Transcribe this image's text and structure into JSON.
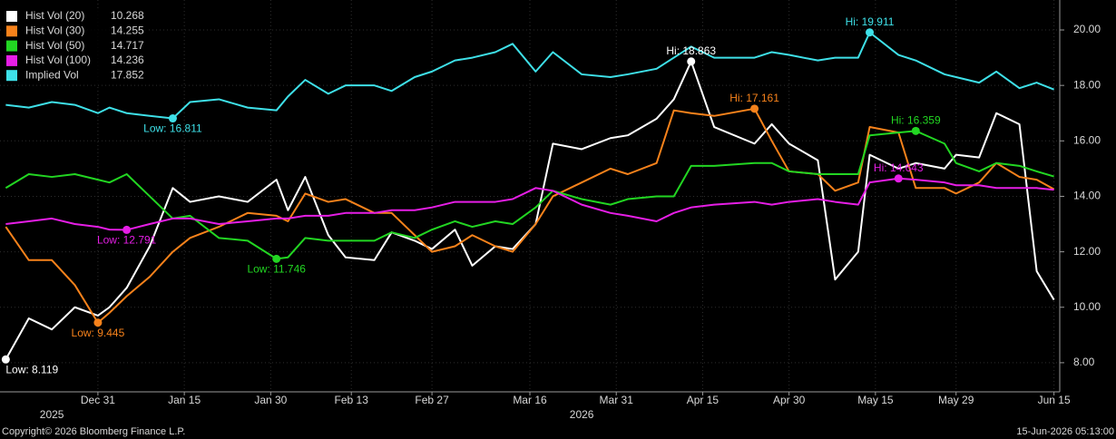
{
  "chart_data": {
    "type": "line",
    "legend_values": "last",
    "x": [
      "2025-12-15",
      "2025-12-19",
      "2025-12-23",
      "2025-12-27",
      "2025-12-31",
      "2026-01-02",
      "2026-01-05",
      "2026-01-09",
      "2026-01-13",
      "2026-01-16",
      "2026-01-21",
      "2026-01-26",
      "2026-01-31",
      "2026-02-02",
      "2026-02-05",
      "2026-02-09",
      "2026-02-12",
      "2026-02-17",
      "2026-02-20",
      "2026-02-24",
      "2026-02-27",
      "2026-03-03",
      "2026-03-06",
      "2026-03-10",
      "2026-03-13",
      "2026-03-17",
      "2026-03-20",
      "2026-03-25",
      "2026-03-30",
      "2026-04-02",
      "2026-04-07",
      "2026-04-10",
      "2026-04-13",
      "2026-04-17",
      "2026-04-24",
      "2026-04-27",
      "2026-04-30",
      "2026-05-05",
      "2026-05-08",
      "2026-05-12",
      "2026-05-14",
      "2026-05-19",
      "2026-05-22",
      "2026-05-27",
      "2026-05-29",
      "2026-06-02",
      "2026-06-05",
      "2026-06-09",
      "2026-06-12",
      "2026-06-15"
    ],
    "series": [
      {
        "name": "Hist Vol (20)",
        "color": "#ffffff",
        "values": [
          8.119,
          9.6,
          9.2,
          10.0,
          9.7,
          10.0,
          10.7,
          12.2,
          14.3,
          13.8,
          14.0,
          13.8,
          14.6,
          13.5,
          14.7,
          12.6,
          11.8,
          11.7,
          12.7,
          12.4,
          12.1,
          12.8,
          11.5,
          12.2,
          12.1,
          13.0,
          15.9,
          15.7,
          16.1,
          16.2,
          16.8,
          17.5,
          18.863,
          16.5,
          15.9,
          16.6,
          15.9,
          15.3,
          11.0,
          12.0,
          15.5,
          15.0,
          15.2,
          15.0,
          15.5,
          15.4,
          17.0,
          16.6,
          11.3,
          10.268
        ],
        "annotations": [
          {
            "label": "Low: 8.119",
            "x": "2025-12-15",
            "value": 8.119,
            "kind": "low"
          },
          {
            "label": "Hi: 18.863",
            "x": "2026-04-13",
            "value": 18.863,
            "kind": "high"
          }
        ]
      },
      {
        "name": "Hist Vol (30)",
        "color": "#f7821b",
        "values": [
          12.9,
          11.7,
          11.7,
          10.8,
          9.445,
          9.8,
          10.4,
          11.1,
          12.0,
          12.5,
          12.9,
          13.4,
          13.3,
          13.1,
          14.1,
          13.8,
          13.9,
          13.4,
          13.4,
          12.6,
          12.0,
          12.2,
          12.6,
          12.2,
          12.0,
          13.0,
          14.0,
          14.5,
          15.0,
          14.8,
          15.2,
          17.1,
          17.0,
          16.9,
          17.161,
          16.0,
          14.9,
          14.8,
          14.2,
          14.5,
          16.5,
          16.3,
          14.3,
          14.3,
          14.1,
          14.5,
          15.2,
          14.7,
          14.6,
          14.255
        ],
        "annotations": [
          {
            "label": "Low: 9.445",
            "x": "2025-12-31",
            "value": 9.445,
            "kind": "low"
          },
          {
            "label": "Hi: 17.161",
            "x": "2026-04-24",
            "value": 17.161,
            "kind": "high"
          }
        ]
      },
      {
        "name": "Hist Vol (50)",
        "color": "#22d622",
        "values": [
          14.3,
          14.8,
          14.7,
          14.8,
          14.6,
          14.5,
          14.8,
          14.0,
          13.2,
          13.3,
          12.5,
          12.4,
          11.746,
          11.8,
          12.5,
          12.4,
          12.4,
          12.4,
          12.7,
          12.5,
          12.8,
          13.1,
          12.9,
          13.1,
          13.0,
          13.6,
          14.2,
          13.9,
          13.7,
          13.9,
          14.0,
          14.0,
          15.1,
          15.1,
          15.2,
          15.2,
          14.9,
          14.8,
          14.8,
          14.8,
          16.2,
          16.3,
          16.359,
          15.9,
          15.2,
          14.9,
          15.2,
          15.1,
          14.9,
          14.717
        ],
        "annotations": [
          {
            "label": "Low: 11.746",
            "x": "2026-01-31",
            "value": 11.746,
            "kind": "low"
          },
          {
            "label": "Hi: 16.359",
            "x": "2026-05-22",
            "value": 16.359,
            "kind": "high"
          }
        ]
      },
      {
        "name": "Hist Vol (100)",
        "color": "#e61ee6",
        "values": [
          13.0,
          13.1,
          13.2,
          13.0,
          12.9,
          12.8,
          12.791,
          13.0,
          13.2,
          13.2,
          13.0,
          13.1,
          13.2,
          13.2,
          13.3,
          13.3,
          13.4,
          13.4,
          13.5,
          13.5,
          13.6,
          13.8,
          13.8,
          13.8,
          13.9,
          14.3,
          14.2,
          13.7,
          13.4,
          13.3,
          13.1,
          13.4,
          13.6,
          13.7,
          13.8,
          13.7,
          13.8,
          13.9,
          13.8,
          13.7,
          14.5,
          14.643,
          14.6,
          14.5,
          14.4,
          14.4,
          14.3,
          14.3,
          14.3,
          14.236
        ],
        "annotations": [
          {
            "label": "Low: 12.791",
            "x": "2026-01-05",
            "value": 12.791,
            "kind": "low"
          },
          {
            "label": "Hi: 14.643",
            "x": "2026-05-19",
            "value": 14.643,
            "kind": "high"
          }
        ]
      },
      {
        "name": "Implied Vol",
        "color": "#3ee0e8",
        "values": [
          17.3,
          17.2,
          17.4,
          17.3,
          17.0,
          17.2,
          17.0,
          16.9,
          16.811,
          17.4,
          17.5,
          17.2,
          17.1,
          17.6,
          18.2,
          17.7,
          18.0,
          18.0,
          17.8,
          18.3,
          18.5,
          18.9,
          19.0,
          19.2,
          19.5,
          18.5,
          19.2,
          18.4,
          18.3,
          18.4,
          18.6,
          19.0,
          19.4,
          19.0,
          19.0,
          19.2,
          19.1,
          18.9,
          19.0,
          19.0,
          19.911,
          19.1,
          18.9,
          18.4,
          18.3,
          18.1,
          18.5,
          17.9,
          18.1,
          17.852
        ],
        "annotations": [
          {
            "label": "Low: 16.811",
            "x": "2026-01-13",
            "value": 16.811,
            "kind": "low"
          },
          {
            "label": "Hi: 19.911",
            "x": "2026-05-14",
            "value": 19.911,
            "kind": "high"
          }
        ]
      }
    ],
    "xlim": [
      "2025-12-14",
      "2026-06-16"
    ],
    "xticks": [
      {
        "value": "2025-12-31",
        "label": "Dec 31"
      },
      {
        "value": "2026-01-15",
        "label": "Jan 15"
      },
      {
        "value": "2026-01-30",
        "label": "Jan 30"
      },
      {
        "value": "2026-02-13",
        "label": "Feb 13"
      },
      {
        "value": "2026-02-27",
        "label": "Feb 27"
      },
      {
        "value": "2026-03-16",
        "label": "Mar 16"
      },
      {
        "value": "2026-03-31",
        "label": "Mar 31"
      },
      {
        "value": "2026-04-15",
        "label": "Apr 15"
      },
      {
        "value": "2026-04-30",
        "label": "Apr 30"
      },
      {
        "value": "2026-05-15",
        "label": "May 15"
      },
      {
        "value": "2026-05-29",
        "label": "May 29"
      },
      {
        "value": "2026-06-15",
        "label": "Jun 15"
      }
    ],
    "year_labels": [
      "2025",
      "2026"
    ],
    "ylim": [
      6.95,
      21.08
    ],
    "yticks": [
      {
        "value": 8,
        "label": "8.00"
      },
      {
        "value": 10,
        "label": "10.00"
      },
      {
        "value": 12,
        "label": "12.00"
      },
      {
        "value": 14,
        "label": "14.00"
      },
      {
        "value": 16,
        "label": "16.00"
      },
      {
        "value": 18,
        "label": "18.00"
      },
      {
        "value": 20,
        "label": "20.00"
      }
    ],
    "y_axis_side": "right",
    "grid": true,
    "legend_position": "upper-left",
    "background": "#000000",
    "footer_left": "Copyright© 2026 Bloomberg Finance L.P.",
    "footer_right": "15-Jun-2026 05:13:00"
  }
}
